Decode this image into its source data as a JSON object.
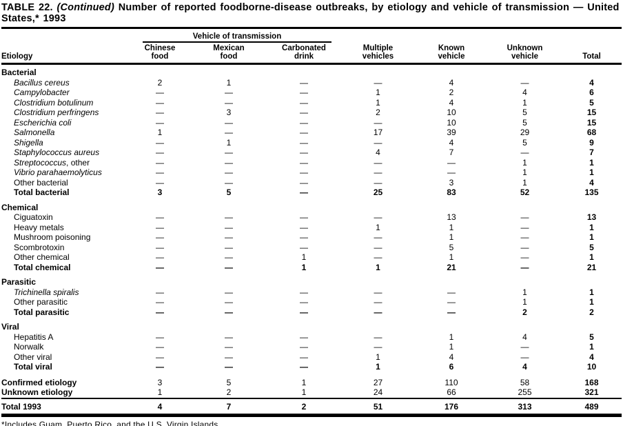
{
  "colors": {
    "text": "#000000",
    "background": "#ffffff"
  },
  "title": {
    "prefix": "TABLE 22. ",
    "continued": "(Continued)",
    "rest": " Number of reported foodborne-disease outbreaks, by etiology and vehicle of transmission — United States,* 1993"
  },
  "table": {
    "etiology_label": "Etiology",
    "spanner_label": "Vehicle of transmission",
    "columns": [
      {
        "line1": "Chinese",
        "line2": "food"
      },
      {
        "line1": "Mexican",
        "line2": "food"
      },
      {
        "line1": "Carbonated",
        "line2": "drink"
      },
      {
        "line1": "Multiple",
        "line2": "vehicles"
      },
      {
        "line1": "Known",
        "line2": "vehicle"
      },
      {
        "line1": "Unknown",
        "line2": "vehicle"
      },
      {
        "line1": "",
        "line2": "Total"
      }
    ],
    "sections": [
      {
        "name": "Bacterial",
        "rows": [
          {
            "label": "Bacillus cereus",
            "italic": true,
            "style": "normal",
            "cells": [
              "2",
              "1",
              "—",
              "—",
              "4",
              "—",
              "4"
            ]
          },
          {
            "label": "Campylobacter",
            "italic": true,
            "style": "normal",
            "cells": [
              "—",
              "—",
              "—",
              "1",
              "2",
              "4",
              "6"
            ]
          },
          {
            "label": "Clostridium botulinum",
            "italic": true,
            "style": "normal",
            "cells": [
              "—",
              "—",
              "—",
              "1",
              "4",
              "1",
              "5"
            ]
          },
          {
            "label": "Clostridium perfringens",
            "italic": true,
            "style": "normal",
            "cells": [
              "—",
              "3",
              "—",
              "2",
              "10",
              "5",
              "15"
            ]
          },
          {
            "label": "Escherichia coli",
            "italic": true,
            "style": "normal",
            "cells": [
              "—",
              "—",
              "—",
              "—",
              "10",
              "5",
              "15"
            ]
          },
          {
            "label": "Salmonella",
            "italic": true,
            "style": "normal",
            "cells": [
              "1",
              "—",
              "—",
              "17",
              "39",
              "29",
              "68"
            ]
          },
          {
            "label": "Shigella",
            "italic": true,
            "style": "normal",
            "cells": [
              "—",
              "1",
              "—",
              "—",
              "4",
              "5",
              "9"
            ]
          },
          {
            "label": "Staphylococcus aureus",
            "italic": true,
            "style": "normal",
            "cells": [
              "—",
              "—",
              "—",
              "4",
              "7",
              "—",
              "7"
            ]
          },
          {
            "label": "Streptococcus",
            "suffix": ", other",
            "italic": true,
            "style": "normal",
            "cells": [
              "—",
              "—",
              "—",
              "—",
              "—",
              "1",
              "1"
            ]
          },
          {
            "label": "Vibrio parahaemolyticus",
            "italic": true,
            "style": "normal",
            "cells": [
              "—",
              "—",
              "—",
              "—",
              "—",
              "1",
              "1"
            ]
          },
          {
            "label": "Other bacterial",
            "italic": false,
            "style": "normal",
            "cells": [
              "—",
              "—",
              "—",
              "—",
              "3",
              "1",
              "4"
            ]
          },
          {
            "label": "Total bacterial",
            "italic": false,
            "style": "total",
            "cells": [
              "3",
              "5",
              "—",
              "25",
              "83",
              "52",
              "135"
            ]
          }
        ]
      },
      {
        "name": "Chemical",
        "rows": [
          {
            "label": "Ciguatoxin",
            "italic": false,
            "style": "normal",
            "cells": [
              "—",
              "—",
              "—",
              "—",
              "13",
              "—",
              "13"
            ]
          },
          {
            "label": "Heavy metals",
            "italic": false,
            "style": "normal",
            "cells": [
              "—",
              "—",
              "—",
              "1",
              "1",
              "—",
              "1"
            ]
          },
          {
            "label": "Mushroom poisoning",
            "italic": false,
            "style": "normal",
            "cells": [
              "—",
              "—",
              "—",
              "—",
              "1",
              "—",
              "1"
            ]
          },
          {
            "label": "Scombrotoxin",
            "italic": false,
            "style": "normal",
            "cells": [
              "—",
              "—",
              "—",
              "—",
              "5",
              "—",
              "5"
            ]
          },
          {
            "label": "Other chemical",
            "italic": false,
            "style": "normal",
            "cells": [
              "—",
              "—",
              "1",
              "—",
              "1",
              "—",
              "1"
            ]
          },
          {
            "label": "Total chemical",
            "italic": false,
            "style": "total",
            "cells": [
              "—",
              "—",
              "1",
              "1",
              "21",
              "—",
              "21"
            ]
          }
        ]
      },
      {
        "name": "Parasitic",
        "rows": [
          {
            "label": "Trichinella spiralis",
            "italic": true,
            "style": "normal",
            "cells": [
              "—",
              "—",
              "—",
              "—",
              "—",
              "1",
              "1"
            ]
          },
          {
            "label": "Other parasitic",
            "italic": false,
            "style": "normal",
            "cells": [
              "—",
              "—",
              "—",
              "—",
              "—",
              "1",
              "1"
            ]
          },
          {
            "label": "Total parasitic",
            "italic": false,
            "style": "total",
            "cells": [
              "—",
              "—",
              "—",
              "—",
              "—",
              "2",
              "2"
            ]
          }
        ]
      },
      {
        "name": "Viral",
        "rows": [
          {
            "label": "Hepatitis A",
            "italic": false,
            "style": "normal",
            "cells": [
              "—",
              "—",
              "—",
              "—",
              "1",
              "4",
              "5"
            ]
          },
          {
            "label": "Norwalk",
            "italic": false,
            "style": "normal",
            "cells": [
              "—",
              "—",
              "—",
              "—",
              "1",
              "—",
              "1"
            ]
          },
          {
            "label": "Other viral",
            "italic": false,
            "style": "normal",
            "cells": [
              "—",
              "—",
              "—",
              "1",
              "4",
              "—",
              "4"
            ]
          },
          {
            "label": "Total viral",
            "italic": false,
            "style": "total",
            "cells": [
              "—",
              "—",
              "—",
              "1",
              "6",
              "4",
              "10"
            ]
          }
        ]
      }
    ],
    "summary_rows": [
      {
        "label": "Confirmed etiology",
        "italic": false,
        "style": "summary",
        "indent": false,
        "cells": [
          "3",
          "5",
          "1",
          "27",
          "110",
          "58",
          "168"
        ]
      },
      {
        "label": "Unknown etiology",
        "italic": false,
        "style": "summary",
        "indent": false,
        "cells": [
          "1",
          "2",
          "1",
          "24",
          "66",
          "255",
          "321"
        ]
      }
    ],
    "grand_total": {
      "label": "Total 1993",
      "italic": false,
      "style": "total",
      "indent": false,
      "cells": [
        "4",
        "7",
        "2",
        "51",
        "176",
        "313",
        "489"
      ]
    }
  },
  "footnote": "*Includes Guam, Puerto Rico, and the U.S. Virgin Islands."
}
